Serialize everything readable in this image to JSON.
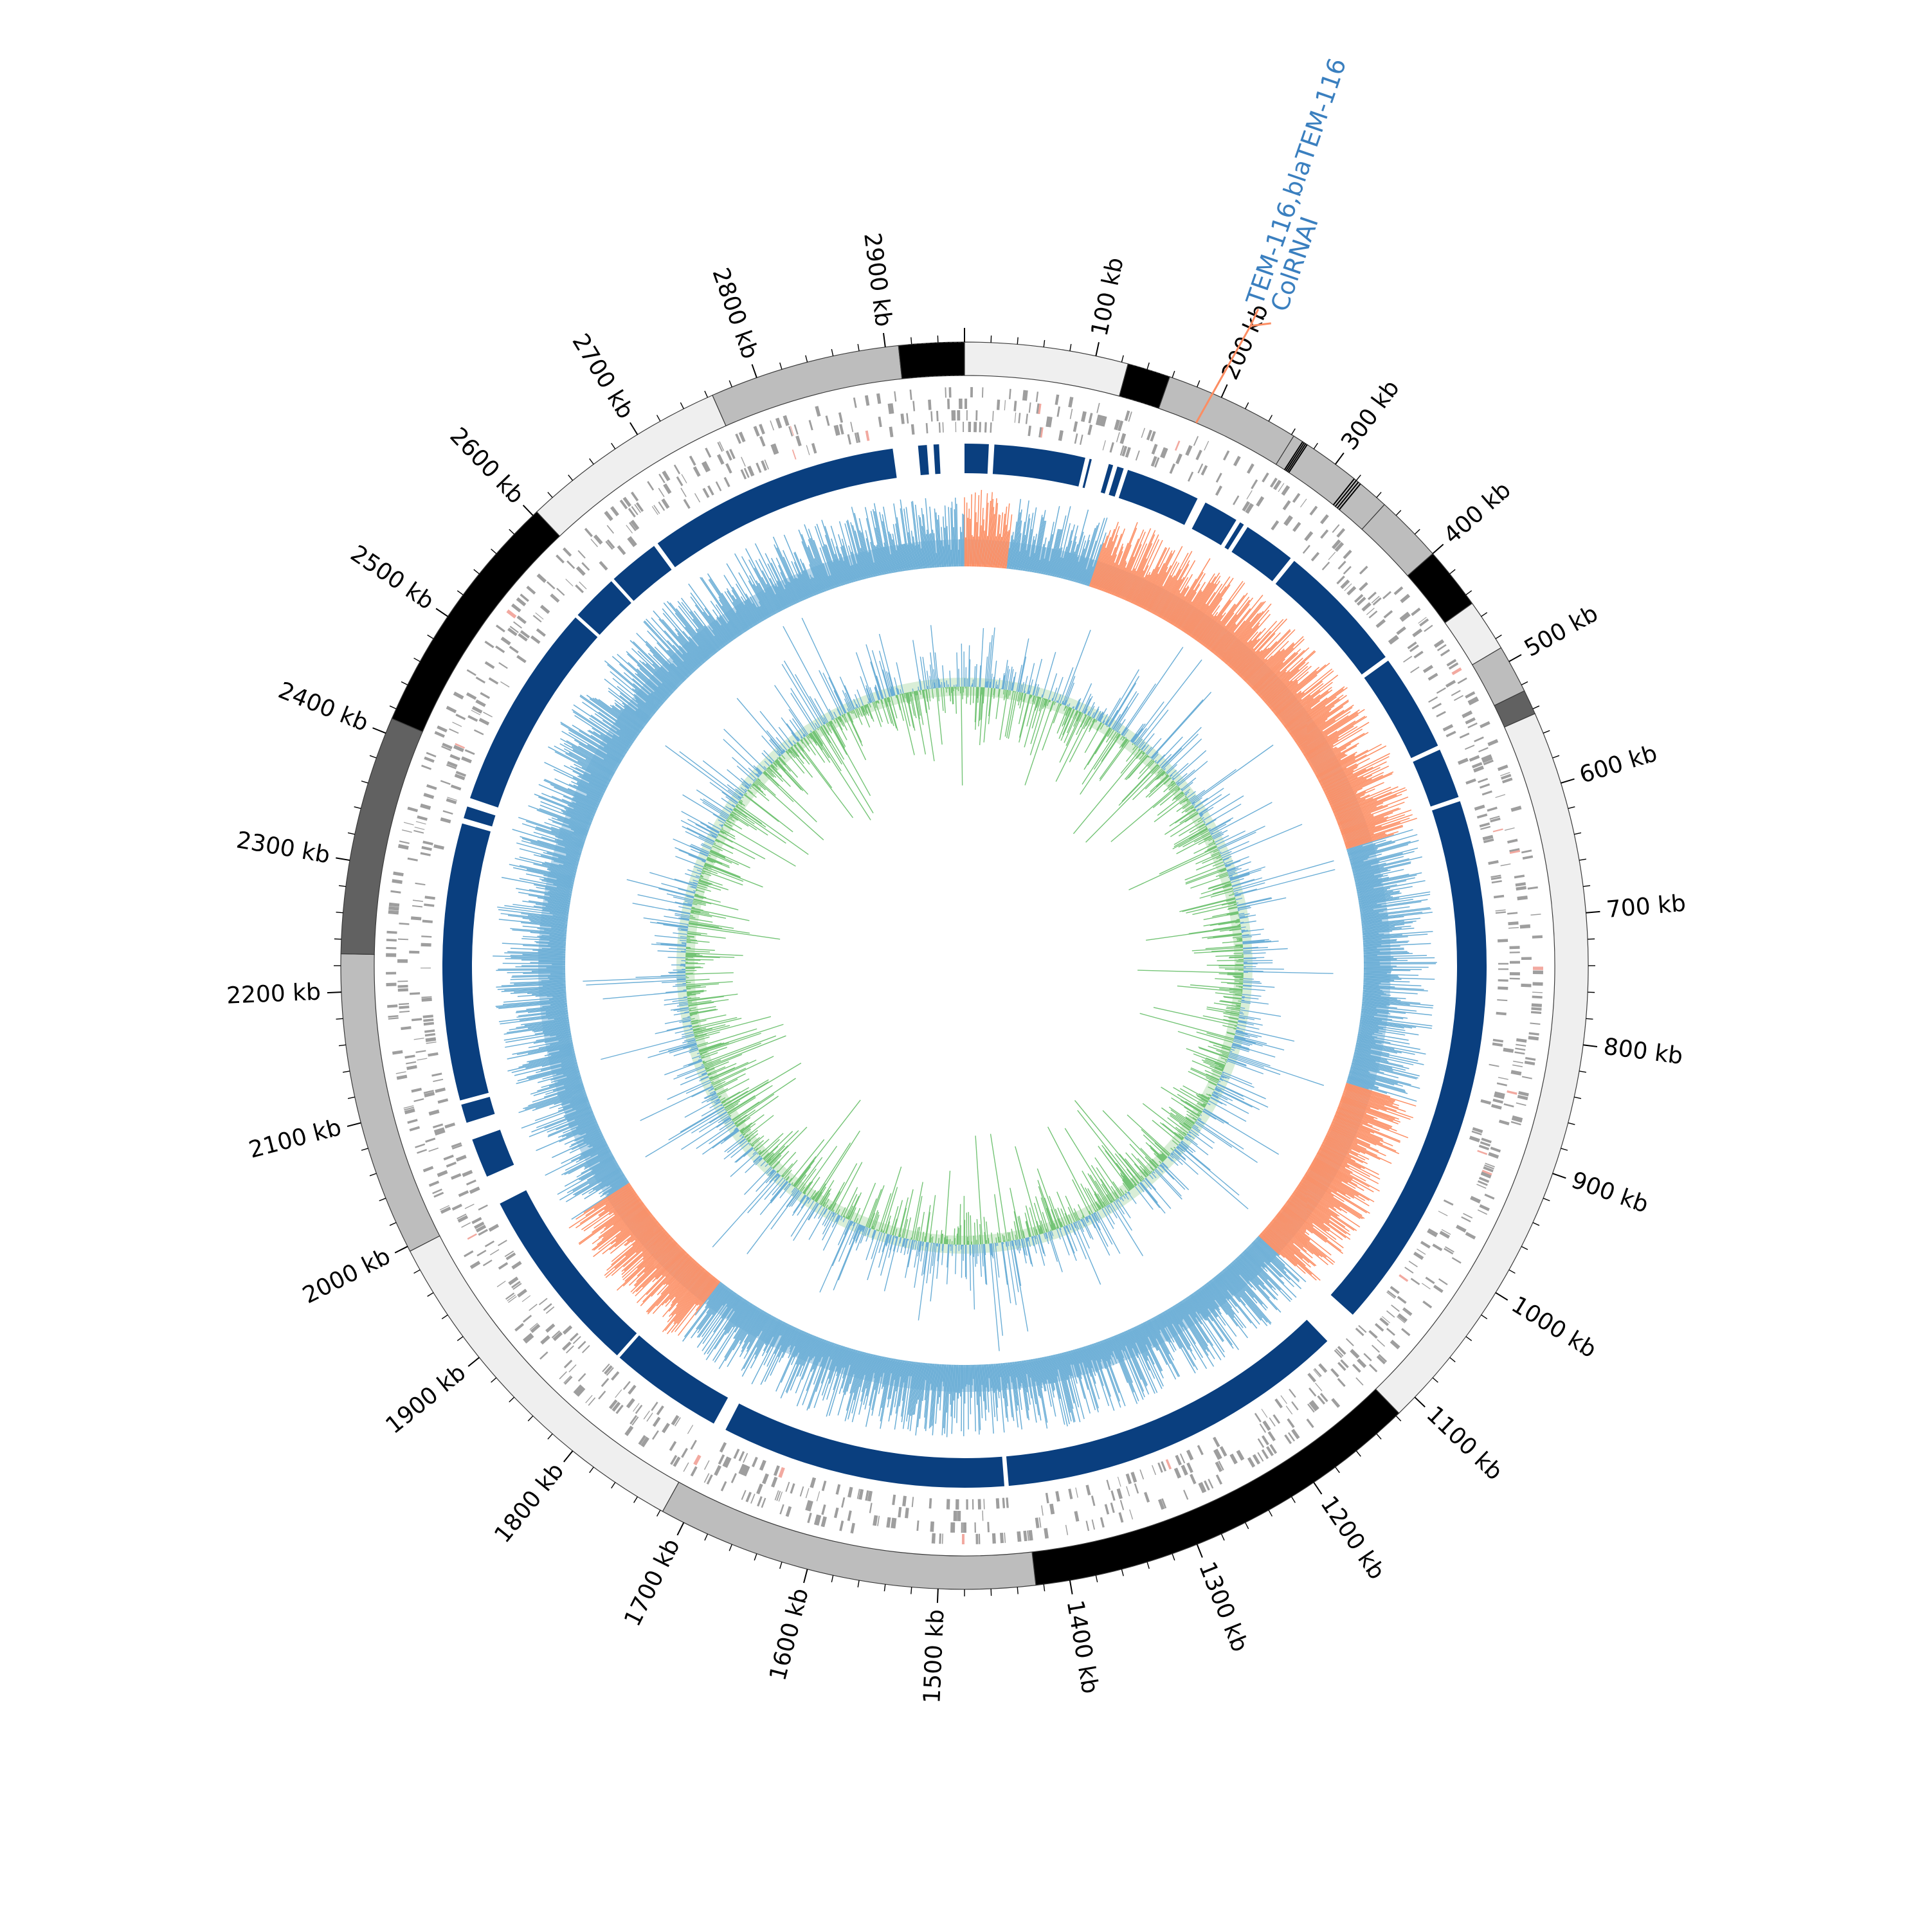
{
  "genome": {
    "length_kb": 2960,
    "tick_labels": [
      {
        "kb": 100,
        "text": "100 kb"
      },
      {
        "kb": 200,
        "text": "200 kb"
      },
      {
        "kb": 300,
        "text": "300 kb"
      },
      {
        "kb": 400,
        "text": "400 kb"
      },
      {
        "kb": 500,
        "text": "500 kb"
      },
      {
        "kb": 600,
        "text": "600 kb"
      },
      {
        "kb": 700,
        "text": "700 kb"
      },
      {
        "kb": 800,
        "text": "800 kb"
      },
      {
        "kb": 900,
        "text": "900 kb"
      },
      {
        "kb": 1000,
        "text": "1000 kb"
      },
      {
        "kb": 1100,
        "text": "1100 kb"
      },
      {
        "kb": 1200,
        "text": "1200 kb"
      },
      {
        "kb": 1300,
        "text": "1300 kb"
      },
      {
        "kb": 1400,
        "text": "1400 kb"
      },
      {
        "kb": 1500,
        "text": "1500 kb"
      },
      {
        "kb": 1600,
        "text": "1600 kb"
      },
      {
        "kb": 1700,
        "text": "1700 kb"
      },
      {
        "kb": 1800,
        "text": "1800 kb"
      },
      {
        "kb": 1900,
        "text": "1900 kb"
      },
      {
        "kb": 2000,
        "text": "2000 kb"
      },
      {
        "kb": 2100,
        "text": "2100 kb"
      },
      {
        "kb": 2200,
        "text": "2200 kb"
      },
      {
        "kb": 2300,
        "text": "2300 kb"
      },
      {
        "kb": 2400,
        "text": "2400 kb"
      },
      {
        "kb": 2500,
        "text": "2500 kb"
      },
      {
        "kb": 2600,
        "text": "2600 kb"
      },
      {
        "kb": 2700,
        "text": "2700 kb"
      },
      {
        "kb": 2800,
        "text": "2800 kb"
      },
      {
        "kb": 2900,
        "text": "2900 kb"
      }
    ]
  },
  "contigs": [
    {
      "start": 0,
      "end": 125,
      "color": "#efefef"
    },
    {
      "start": 125,
      "end": 158,
      "color": "#000000"
    },
    {
      "start": 158,
      "end": 262,
      "color": "#bdbdbd"
    },
    {
      "start": 262,
      "end": 348,
      "color": "#bdbdbd"
    },
    {
      "start": 348,
      "end": 400,
      "color": "#bdbdbd"
    },
    {
      "start": 400,
      "end": 448,
      "color": "#000000"
    },
    {
      "start": 448,
      "end": 488,
      "color": "#efefef"
    },
    {
      "start": 488,
      "end": 525,
      "color": "#bdbdbd"
    },
    {
      "start": 525,
      "end": 544,
      "color": "#616161"
    },
    {
      "start": 544,
      "end": 1117,
      "color": "#efefef"
    },
    {
      "start": 1117,
      "end": 1426,
      "color": "#000000"
    },
    {
      "start": 1426,
      "end": 1718,
      "color": "#bdbdbd"
    },
    {
      "start": 1718,
      "end": 1996,
      "color": "#efefef"
    },
    {
      "start": 1996,
      "end": 2229,
      "color": "#bdbdbd"
    },
    {
      "start": 2229,
      "end": 2412,
      "color": "#616161"
    },
    {
      "start": 2412,
      "end": 2604,
      "color": "#000000"
    },
    {
      "start": 2604,
      "end": 2764,
      "color": "#efefef"
    },
    {
      "start": 2764,
      "end": 2910,
      "color": "#bdbdbd"
    },
    {
      "start": 2910,
      "end": 2960,
      "color": "#000000"
    }
  ],
  "blast_blocks": [
    {
      "start": 0,
      "end": 22
    },
    {
      "start": 27,
      "end": 110
    },
    {
      "start": 114,
      "end": 116
    },
    {
      "start": 132,
      "end": 136
    },
    {
      "start": 140,
      "end": 146
    },
    {
      "start": 150,
      "end": 218
    },
    {
      "start": 226,
      "end": 258
    },
    {
      "start": 262,
      "end": 266
    },
    {
      "start": 270,
      "end": 318
    },
    {
      "start": 322,
      "end": 442
    },
    {
      "start": 446,
      "end": 535
    },
    {
      "start": 539,
      "end": 585
    },
    {
      "start": 589,
      "end": 1085
    },
    {
      "start": 1118,
      "end": 1440
    },
    {
      "start": 1444,
      "end": 1704
    },
    {
      "start": 1716,
      "end": 1820
    },
    {
      "start": 1823,
      "end": 1997
    },
    {
      "start": 2024,
      "end": 2060
    },
    {
      "start": 2076,
      "end": 2093
    },
    {
      "start": 2097,
      "end": 2350
    },
    {
      "start": 2355,
      "end": 2366
    },
    {
      "start": 2374,
      "end": 2564
    },
    {
      "start": 2567,
      "end": 2610
    },
    {
      "start": 2613,
      "end": 2660
    },
    {
      "start": 2664,
      "end": 2895
    },
    {
      "start": 2918,
      "end": 2926
    },
    {
      "start": 2932,
      "end": 2937
    }
  ],
  "gc_skew_negative_regions": [
    {
      "start": 0,
      "end": 50
    },
    {
      "start": 150,
      "end": 600
    },
    {
      "start": 880,
      "end": 1090
    },
    {
      "start": 1790,
      "end": 1950
    }
  ],
  "annotations": [
    {
      "kb": 190,
      "color": "#3a7fbf",
      "line_color": "#fc8d62",
      "lines": [
        "TEM-116,blaTEM-116",
        "ColRNAI"
      ]
    }
  ],
  "colors": {
    "contig_outline": "#3a3a3a",
    "cds_track": "#9e9e9e",
    "cds_highlight": "#f2a9a0",
    "blast": "#0a3f7f",
    "gc_content_positive": "#6baed6",
    "gc_content_fill": "#a6cde6",
    "gc_skew_negative": "#fc8d62",
    "gc_skew_inner": "#74c476",
    "gc_inner_blue": "#6baed6",
    "ticks": "#000000"
  }
}
